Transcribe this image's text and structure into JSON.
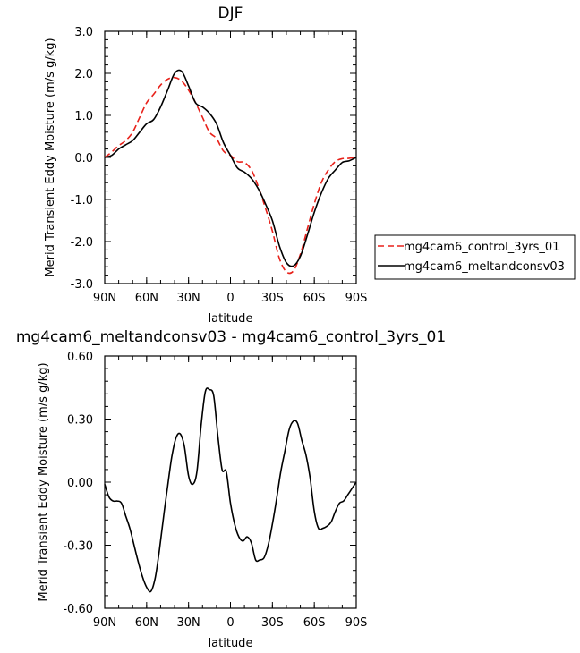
{
  "chart_data": [
    {
      "type": "line",
      "title": "DJF",
      "xlabel": "latitude",
      "ylabel": "Merid Transient Eddy Moisture (m/s g/kg)",
      "xlim": [
        90,
        -90
      ],
      "ylim": [
        -3.0,
        3.0
      ],
      "x_ticks": [
        90,
        60,
        30,
        0,
        -30,
        -60,
        -90
      ],
      "x_tick_labels": [
        "90N",
        "60N",
        "30N",
        "0",
        "30S",
        "60S",
        "90S"
      ],
      "y_ticks": [
        3.0,
        2.0,
        1.0,
        0.0,
        -1.0,
        -2.0,
        -3.0
      ],
      "y_tick_labels": [
        "3.0",
        "2.0",
        "1.0",
        "0.0",
        "-1.0",
        "-2.0",
        "-3.0"
      ],
      "legend_position": "right",
      "series": [
        {
          "name": "mg4cam6_control_3yrs_01",
          "color": "#e8211a",
          "dash": "dashed",
          "x": [
            90,
            85,
            80,
            75,
            70,
            65,
            60,
            55,
            50,
            45,
            40,
            35,
            30,
            25,
            20,
            15,
            10,
            5,
            0,
            -5,
            -10,
            -15,
            -20,
            -25,
            -30,
            -35,
            -40,
            -45,
            -50,
            -55,
            -60,
            -65,
            -70,
            -75,
            -80,
            -85,
            -90
          ],
          "y": [
            0.0,
            0.13,
            0.28,
            0.4,
            0.6,
            0.95,
            1.3,
            1.5,
            1.72,
            1.86,
            1.9,
            1.82,
            1.6,
            1.3,
            0.95,
            0.6,
            0.45,
            0.15,
            0.05,
            -0.1,
            -0.12,
            -0.3,
            -0.7,
            -1.2,
            -1.75,
            -2.4,
            -2.72,
            -2.7,
            -2.3,
            -1.7,
            -1.1,
            -0.6,
            -0.3,
            -0.1,
            -0.03,
            -0.02,
            0.0
          ]
        },
        {
          "name": "mg4cam6_meltandconsv03",
          "color": "#000000",
          "dash": "solid",
          "x": [
            90,
            85,
            80,
            75,
            70,
            65,
            60,
            55,
            50,
            45,
            40,
            35,
            30,
            25,
            20,
            15,
            10,
            5,
            0,
            -5,
            -10,
            -15,
            -20,
            -25,
            -30,
            -35,
            -40,
            -45,
            -50,
            -55,
            -60,
            -65,
            -70,
            -75,
            -80,
            -85,
            -90
          ],
          "y": [
            0.0,
            0.05,
            0.2,
            0.3,
            0.4,
            0.6,
            0.8,
            0.9,
            1.2,
            1.6,
            2.0,
            2.05,
            1.7,
            1.3,
            1.2,
            1.05,
            0.8,
            0.35,
            0.05,
            -0.25,
            -0.35,
            -0.5,
            -0.75,
            -1.1,
            -1.5,
            -2.1,
            -2.5,
            -2.58,
            -2.35,
            -1.85,
            -1.3,
            -0.85,
            -0.5,
            -0.3,
            -0.12,
            -0.08,
            0.0
          ]
        }
      ]
    },
    {
      "type": "line",
      "title": "mg4cam6_meltandconsv03 - mg4cam6_control_3yrs_01",
      "xlabel": "latitude",
      "ylabel": "Merid Transient Eddy Moisture (m/s g/kg)",
      "xlim": [
        90,
        -90
      ],
      "ylim": [
        -0.6,
        0.6
      ],
      "x_ticks": [
        90,
        60,
        30,
        0,
        -30,
        -60,
        -90
      ],
      "x_tick_labels": [
        "90N",
        "60N",
        "30N",
        "0",
        "30S",
        "60S",
        "90S"
      ],
      "y_ticks": [
        0.6,
        0.3,
        0.0,
        -0.3,
        -0.6
      ],
      "y_tick_labels": [
        "0.60",
        "0.30",
        "0.00",
        "-0.30",
        "-0.60"
      ],
      "series": [
        {
          "color": "#000000",
          "dash": "solid",
          "x": [
            90,
            87,
            84,
            81,
            78,
            75,
            72,
            69,
            66,
            63,
            60,
            57,
            54,
            51,
            48,
            45,
            42,
            39,
            36,
            33,
            30,
            27,
            24,
            21,
            18,
            15,
            12,
            9,
            6,
            3,
            0,
            -3,
            -6,
            -9,
            -12,
            -15,
            -18,
            -21,
            -24,
            -27,
            -30,
            -33,
            -36,
            -39,
            -42,
            -45,
            -48,
            -51,
            -54,
            -57,
            -60,
            -63,
            -66,
            -69,
            -72,
            -75,
            -78,
            -81,
            -84,
            -87,
            -90
          ],
          "y": [
            -0.01,
            -0.07,
            -0.09,
            -0.09,
            -0.1,
            -0.16,
            -0.22,
            -0.3,
            -0.38,
            -0.45,
            -0.5,
            -0.52,
            -0.46,
            -0.33,
            -0.17,
            -0.02,
            0.12,
            0.21,
            0.23,
            0.17,
            0.03,
            -0.01,
            0.05,
            0.27,
            0.43,
            0.44,
            0.41,
            0.22,
            0.06,
            0.05,
            -0.1,
            -0.2,
            -0.26,
            -0.28,
            -0.26,
            -0.29,
            -0.37,
            -0.37,
            -0.36,
            -0.3,
            -0.2,
            -0.08,
            0.05,
            0.15,
            0.25,
            0.29,
            0.28,
            0.2,
            0.13,
            0.02,
            -0.14,
            -0.22,
            -0.22,
            -0.21,
            -0.19,
            -0.14,
            -0.1,
            -0.09,
            -0.06,
            -0.03,
            0.0
          ]
        }
      ]
    }
  ]
}
